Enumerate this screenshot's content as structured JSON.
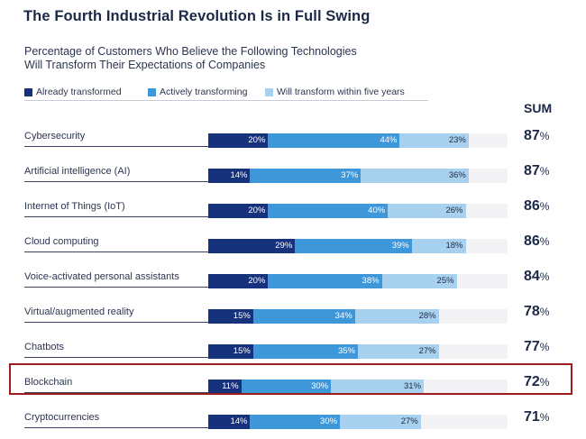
{
  "title": "The Fourth Industrial Revolution Is in Full Swing",
  "subtitle_line1": "Percentage of Customers Who Believe the Following Technologies",
  "subtitle_line2": "Will Transform Their Expectations of Companies",
  "sum_header": "SUM",
  "colors": {
    "already": "#17327c",
    "actively": "#3e97d8",
    "will": "#a8d0ef",
    "highlight": "#9a1c1c"
  },
  "highlighted_category": "Blockchain",
  "chart_data": {
    "type": "bar",
    "orientation": "horizontal-stacked",
    "series": [
      {
        "name": "Already transformed",
        "values": [
          20,
          14,
          20,
          29,
          20,
          15,
          15,
          11,
          14
        ]
      },
      {
        "name": "Actively transforming",
        "values": [
          44,
          37,
          40,
          39,
          38,
          34,
          35,
          30,
          30
        ]
      },
      {
        "name": "Will transform within five years",
        "values": [
          23,
          36,
          26,
          18,
          25,
          28,
          27,
          31,
          27
        ]
      }
    ],
    "categories": [
      "Cybersecurity",
      "Artificial intelligence (AI)",
      "Internet of Things (IoT)",
      "Cloud computing",
      "Voice-activated personal assistants",
      "Virtual/augmented reality",
      "Chatbots",
      "Blockchain",
      "Cryptocurrencies"
    ],
    "sums": [
      87,
      87,
      86,
      86,
      84,
      78,
      77,
      72,
      71
    ],
    "value_suffix": "%",
    "xlim": [
      0,
      100
    ],
    "legend_position": "top-left"
  }
}
